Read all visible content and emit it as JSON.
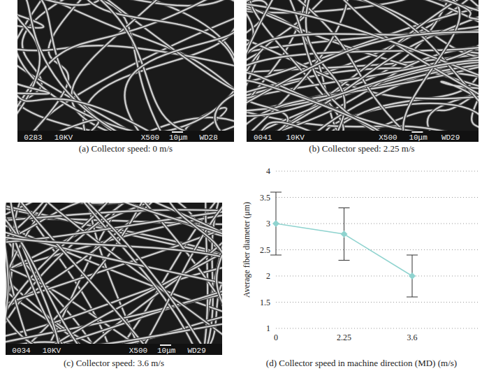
{
  "panels": [
    {
      "caption": "(a) Collector speed: 0 m/s",
      "image_text": [
        "0283",
        "10KV",
        "X500",
        "10μm",
        "WD28"
      ]
    },
    {
      "caption": "(b) Collector speed: 2.25 m/s",
      "image_text": [
        "0041",
        "10KV",
        "X500",
        "10μm",
        "WD29"
      ]
    },
    {
      "caption": "(c) Collector speed: 3.6 m/s",
      "image_text": [
        "0034",
        "10KV",
        "X500",
        "10μm",
        "WD29"
      ]
    }
  ],
  "chart_data": {
    "type": "line",
    "categories": [
      "0",
      "2.25",
      "3.6"
    ],
    "values": [
      3,
      2.8,
      2
    ],
    "errors": [
      0.6,
      0.5,
      0.4
    ],
    "color": "#8fd3cf",
    "marker": "diamond",
    "ylim": [
      1,
      4
    ],
    "yticks": [
      1,
      1.5,
      2,
      2.5,
      3,
      3.5,
      4
    ],
    "grid": true,
    "y_label": "Average fiber diameter (μm)",
    "x_label": "(d) Collector speed in machine direction (MD) (m/s)"
  }
}
